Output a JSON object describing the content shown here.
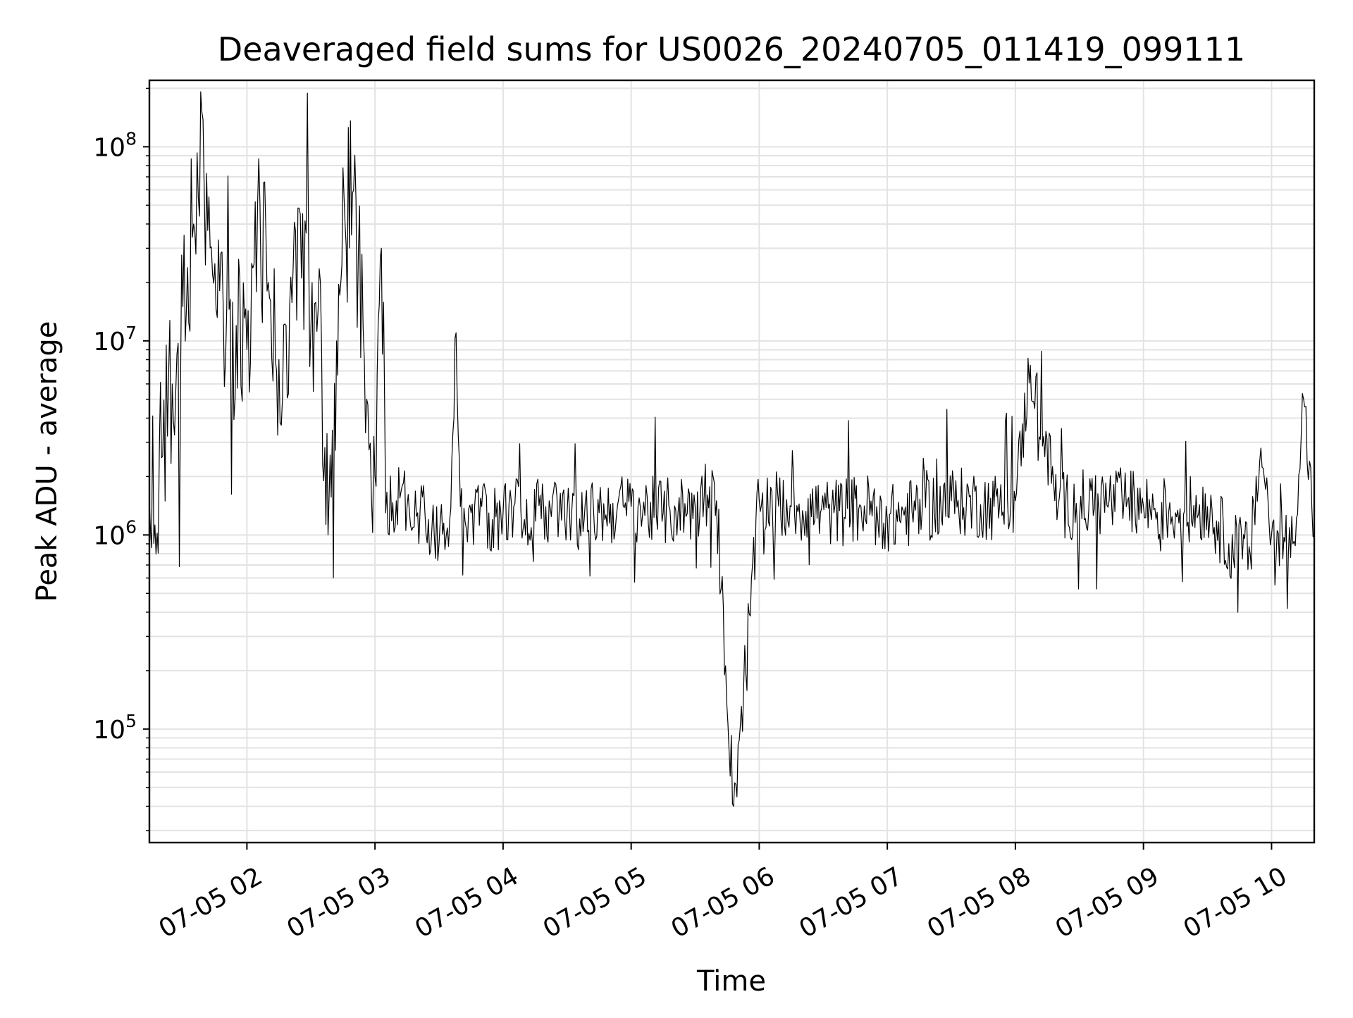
{
  "chart_data": {
    "type": "line",
    "title": "Deaveraged field sums for US0026_20240705_011419_099111",
    "xlabel": "Time",
    "ylabel": "Peak ADU - average",
    "y_scale": "log",
    "xlim": [
      "2024-07-05 01:14:19",
      "2024-07-05 10:20:00"
    ],
    "ylim": [
      26000,
      220000000
    ],
    "x_ticks": [
      {
        "value": "2024-07-05 02:00",
        "label": "07-05 02"
      },
      {
        "value": "2024-07-05 03:00",
        "label": "07-05 03"
      },
      {
        "value": "2024-07-05 04:00",
        "label": "07-05 04"
      },
      {
        "value": "2024-07-05 05:00",
        "label": "07-05 05"
      },
      {
        "value": "2024-07-05 06:00",
        "label": "07-05 06"
      },
      {
        "value": "2024-07-05 07:00",
        "label": "07-05 07"
      },
      {
        "value": "2024-07-05 08:00",
        "label": "07-05 08"
      },
      {
        "value": "2024-07-05 09:00",
        "label": "07-05 09"
      },
      {
        "value": "2024-07-05 10:00",
        "label": "07-05 10"
      }
    ],
    "y_ticks": [
      {
        "value": 100000,
        "base": "10",
        "exp": "5"
      },
      {
        "value": 1000000,
        "base": "10",
        "exp": "6"
      },
      {
        "value": 10000000,
        "base": "10",
        "exp": "7"
      },
      {
        "value": 100000000,
        "base": "10",
        "exp": "8"
      }
    ],
    "grid": true,
    "line_color": "#000000",
    "grid_color": "#e3e3e3",
    "series": [
      {
        "x": [
          "2024-07-05 01:14:19",
          "2024-07-05 01:20",
          "2024-07-05 01:25",
          "2024-07-05 01:30",
          "2024-07-05 01:35",
          "2024-07-05 01:40",
          "2024-07-05 01:45",
          "2024-07-05 01:50",
          "2024-07-05 01:55",
          "2024-07-05 02:00",
          "2024-07-05 02:05",
          "2024-07-05 02:10",
          "2024-07-05 02:15",
          "2024-07-05 02:20",
          "2024-07-05 02:25",
          "2024-07-05 02:30",
          "2024-07-05 02:35",
          "2024-07-05 02:38",
          "2024-07-05 02:42",
          "2024-07-05 02:46",
          "2024-07-05 02:50",
          "2024-07-05 02:55",
          "2024-07-05 03:00",
          "2024-07-05 03:03",
          "2024-07-05 03:05",
          "2024-07-05 03:10",
          "2024-07-05 03:15",
          "2024-07-05 03:20",
          "2024-07-05 03:25",
          "2024-07-05 03:30",
          "2024-07-05 03:35",
          "2024-07-05 03:38",
          "2024-07-05 03:40",
          "2024-07-05 03:45",
          "2024-07-05 03:50",
          "2024-07-05 03:55",
          "2024-07-05 04:00",
          "2024-07-05 04:05",
          "2024-07-05 04:10",
          "2024-07-05 04:20",
          "2024-07-05 04:30",
          "2024-07-05 04:38",
          "2024-07-05 04:45",
          "2024-07-05 05:00",
          "2024-07-05 05:15",
          "2024-07-05 05:30",
          "2024-07-05 05:40",
          "2024-07-05 05:48",
          "2024-07-05 06:00",
          "2024-07-05 06:15",
          "2024-07-05 06:35",
          "2024-07-05 06:55",
          "2024-07-05 07:00",
          "2024-07-05 07:30",
          "2024-07-05 07:50",
          "2024-07-05 08:00",
          "2024-07-05 08:07",
          "2024-07-05 08:20",
          "2024-07-05 08:45",
          "2024-07-05 09:00",
          "2024-07-05 09:15",
          "2024-07-05 09:30",
          "2024-07-05 09:40",
          "2024-07-05 09:50",
          "2024-07-05 09:55",
          "2024-07-05 10:00",
          "2024-07-05 10:10",
          "2024-07-05 10:15",
          "2024-07-05 10:20"
        ],
        "values": [
          1500000,
          2500000,
          6000000,
          15000000,
          40000000,
          60000000,
          25000000,
          8000000,
          12000000,
          9000000,
          50000000,
          20000000,
          8000000,
          15000000,
          45000000,
          12000000,
          9000000,
          1000000,
          10000000,
          40000000,
          60000000,
          8000000,
          2000000,
          30000000,
          1300000,
          1500000,
          1400000,
          1300000,
          1200000,
          900000,
          1200000,
          11000000,
          1400000,
          1300000,
          1400000,
          1200000,
          1300000,
          1400000,
          1200000,
          1400000,
          1300000,
          1200000,
          1300000,
          1400000,
          1300000,
          1400000,
          1500000,
          40000,
          1500000,
          1400000,
          1300000,
          1400000,
          1200000,
          1500000,
          1400000,
          1500000,
          7500000,
          1400000,
          1500000,
          1400000,
          1300000,
          1400000,
          900000,
          800000,
          2800000,
          1000000,
          900000,
          5000000,
          1000000
        ]
      }
    ]
  }
}
